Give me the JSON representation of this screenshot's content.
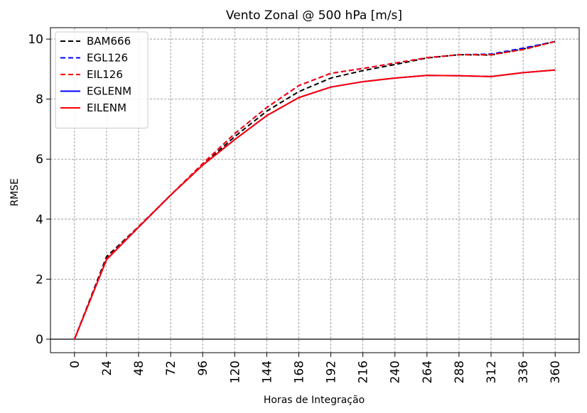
{
  "chart_data": {
    "type": "line",
    "title": "Vento Zonal @ 500 hPa [m/s]",
    "xlabel": "Horas de Integração",
    "ylabel": "RMSE",
    "x": [
      0,
      24,
      48,
      72,
      96,
      120,
      144,
      168,
      192,
      216,
      240,
      264,
      288,
      312,
      336,
      360
    ],
    "x_tick_labels": [
      "0",
      "24",
      "48",
      "72",
      "96",
      "120",
      "144",
      "168",
      "192",
      "216",
      "240",
      "264",
      "288",
      "312",
      "336",
      "360"
    ],
    "y_ticks": [
      0,
      2,
      4,
      6,
      8,
      10
    ],
    "y_tick_labels": [
      "0",
      "2",
      "4",
      "6",
      "8",
      "10"
    ],
    "xlim": [
      -18,
      378
    ],
    "ylim": [
      -0.45,
      10.38
    ],
    "grid": true,
    "zero_line": true,
    "legend_position": "top-left",
    "series": [
      {
        "name": "BAM666",
        "color": "#000000",
        "style": "dashed",
        "values": [
          0.0,
          2.75,
          3.75,
          4.8,
          5.8,
          6.75,
          7.6,
          8.25,
          8.7,
          8.95,
          9.15,
          9.37,
          9.48,
          9.47,
          9.67,
          9.92
        ]
      },
      {
        "name": "EGL126",
        "color": "#0000ff",
        "style": "dashed",
        "values": [
          0.0,
          2.68,
          3.75,
          4.8,
          5.85,
          6.85,
          7.72,
          8.45,
          8.86,
          9.02,
          9.2,
          9.38,
          9.48,
          9.5,
          9.7,
          9.92
        ]
      },
      {
        "name": "EIL126",
        "color": "#ff0000",
        "style": "dashed",
        "values": [
          0.0,
          2.68,
          3.75,
          4.8,
          5.85,
          6.85,
          7.72,
          8.45,
          8.86,
          9.02,
          9.2,
          9.38,
          9.48,
          9.48,
          9.65,
          9.92
        ]
      },
      {
        "name": "EGLENM",
        "color": "#0000ff",
        "style": "solid",
        "values": [
          0.0,
          2.65,
          3.73,
          4.8,
          5.8,
          6.65,
          7.45,
          8.05,
          8.4,
          8.58,
          8.7,
          8.79,
          8.78,
          8.75,
          8.88,
          8.97
        ]
      },
      {
        "name": "EILENM",
        "color": "#ff0000",
        "style": "solid",
        "values": [
          0.0,
          2.65,
          3.73,
          4.8,
          5.8,
          6.65,
          7.45,
          8.05,
          8.4,
          8.58,
          8.7,
          8.79,
          8.78,
          8.75,
          8.88,
          8.97
        ]
      }
    ]
  }
}
